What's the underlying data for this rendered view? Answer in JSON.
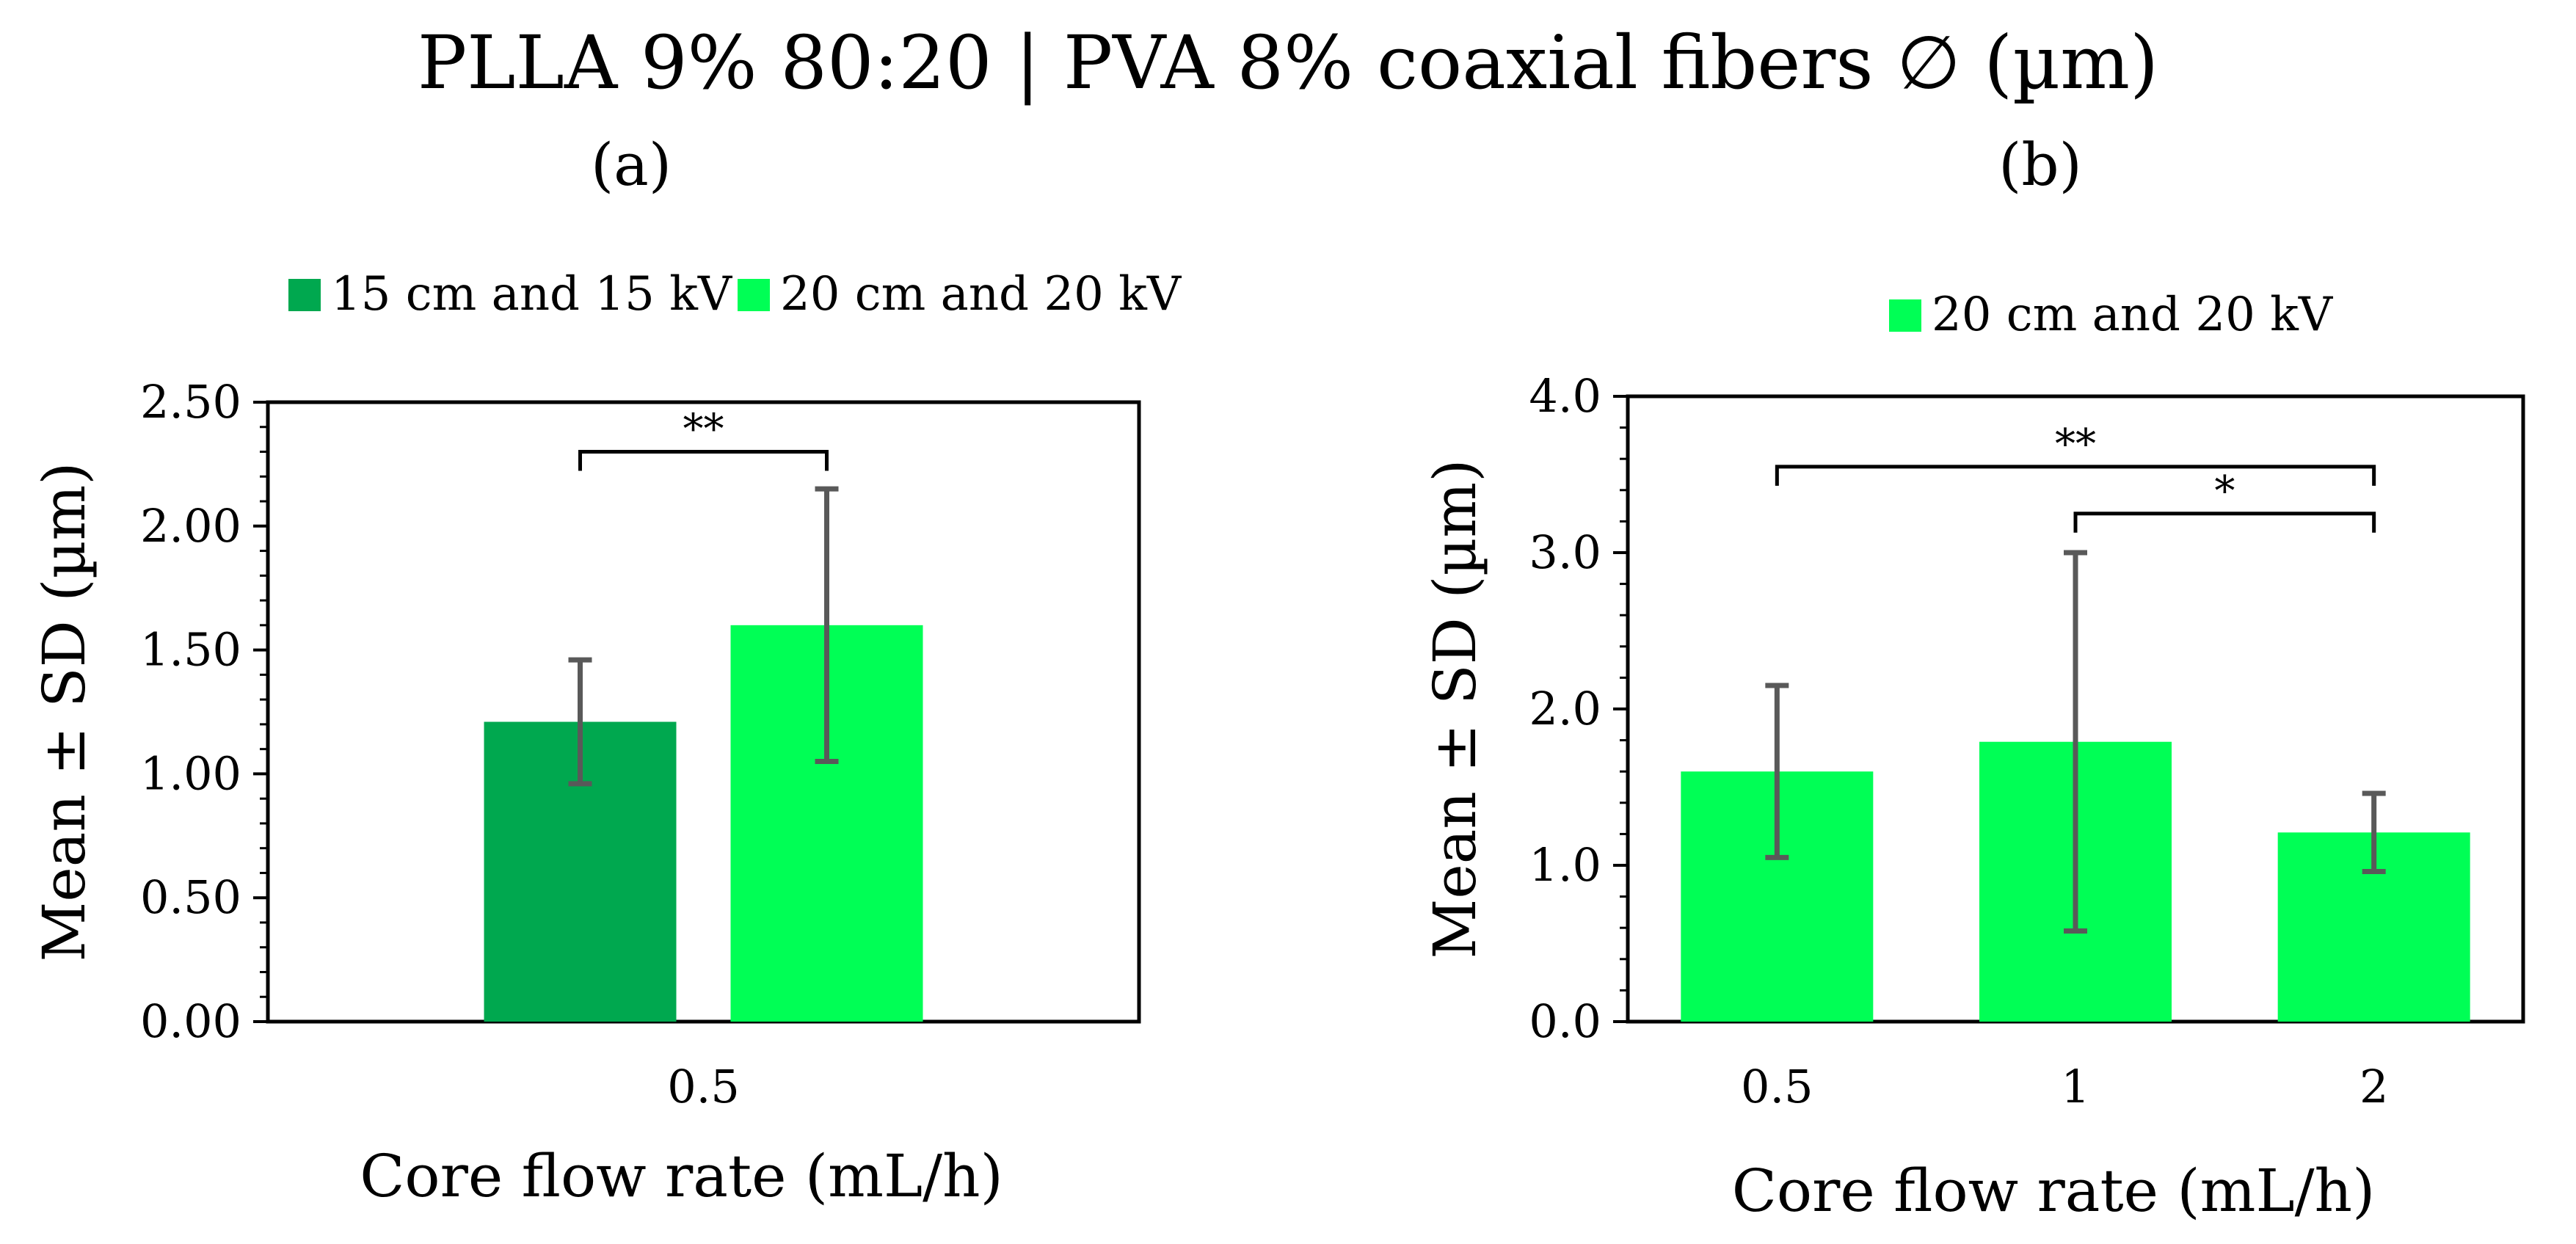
{
  "figure": {
    "title": "PLLA 9% 80:20 | PVA 8% coaxial fibers ∅ (µm)"
  },
  "chart_data": [
    {
      "panel_label": "(a)",
      "type": "bar",
      "title": "",
      "xlabel": "Core flow rate (mL/h)",
      "ylabel": "Mean ± SD (µm)",
      "ylim": [
        0,
        2.5
      ],
      "yticks": [
        "0.00",
        "0.50",
        "1.00",
        "1.50",
        "2.00",
        "2.50"
      ],
      "categories": [
        "0.5"
      ],
      "legend_position": "top",
      "series": [
        {
          "name": "15 cm and 15 kV",
          "color": "#00A84F",
          "values": [
            1.21
          ],
          "errors": [
            0.25
          ]
        },
        {
          "name": "20 cm and 20 kV",
          "color": "#00FF55",
          "values": [
            1.6
          ],
          "errors": [
            0.55
          ]
        }
      ],
      "significance": [
        {
          "label": "**",
          "from": {
            "category": 0,
            "series": 0
          },
          "to": {
            "category": 0,
            "series": 1
          },
          "y": 2.3
        }
      ]
    },
    {
      "panel_label": "(b)",
      "type": "bar",
      "title": "",
      "xlabel": "Core flow rate (mL/h)",
      "ylabel": "Mean ± SD (µm)",
      "ylim": [
        0,
        4.0
      ],
      "yticks": [
        "0.0",
        "1.0",
        "2.0",
        "3.0",
        "4.0"
      ],
      "categories": [
        "0.5",
        "1",
        "2"
      ],
      "legend_position": "top",
      "series": [
        {
          "name": "20 cm and 20 kV",
          "color": "#00FF55",
          "values": [
            1.6,
            1.79,
            1.21
          ],
          "errors": [
            0.55,
            1.21,
            0.25
          ]
        }
      ],
      "significance": [
        {
          "label": "**",
          "from": {
            "category": 0,
            "series": 0
          },
          "to": {
            "category": 2,
            "series": 0
          },
          "y": 3.55
        },
        {
          "label": "*",
          "from": {
            "category": 1,
            "series": 0
          },
          "to": {
            "category": 2,
            "series": 0
          },
          "y": 3.25
        }
      ]
    }
  ]
}
